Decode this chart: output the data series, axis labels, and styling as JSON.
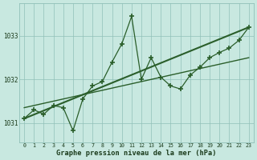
{
  "hours": [
    0,
    1,
    2,
    3,
    4,
    5,
    6,
    7,
    8,
    9,
    10,
    11,
    12,
    13,
    14,
    15,
    16,
    17,
    18,
    19,
    20,
    21,
    22,
    23
  ],
  "pressure": [
    1031.1,
    1031.3,
    1031.2,
    1031.4,
    1031.35,
    1030.82,
    1031.55,
    1031.85,
    1031.95,
    1032.4,
    1032.82,
    1033.45,
    1032.0,
    1032.5,
    1032.05,
    1031.85,
    1031.78,
    1032.1,
    1032.28,
    1032.5,
    1032.62,
    1032.72,
    1032.9,
    1033.2
  ],
  "trend1_x": [
    0,
    23
  ],
  "trend1_y": [
    1031.1,
    1033.2
  ],
  "trend2_x": [
    0,
    23
  ],
  "trend2_y": [
    1031.35,
    1032.5
  ],
  "line_color": "#2a5e2a",
  "bg_color": "#c8e8e0",
  "grid_color": "#90c0b8",
  "text_color": "#1a3a1a",
  "yticks": [
    1031,
    1032,
    1033
  ],
  "xlim": [
    -0.5,
    23.5
  ],
  "ylim": [
    1030.55,
    1033.75
  ],
  "xlabel": "Graphe pression niveau de la mer (hPa)",
  "figsize": [
    3.2,
    2.0
  ],
  "dpi": 100
}
